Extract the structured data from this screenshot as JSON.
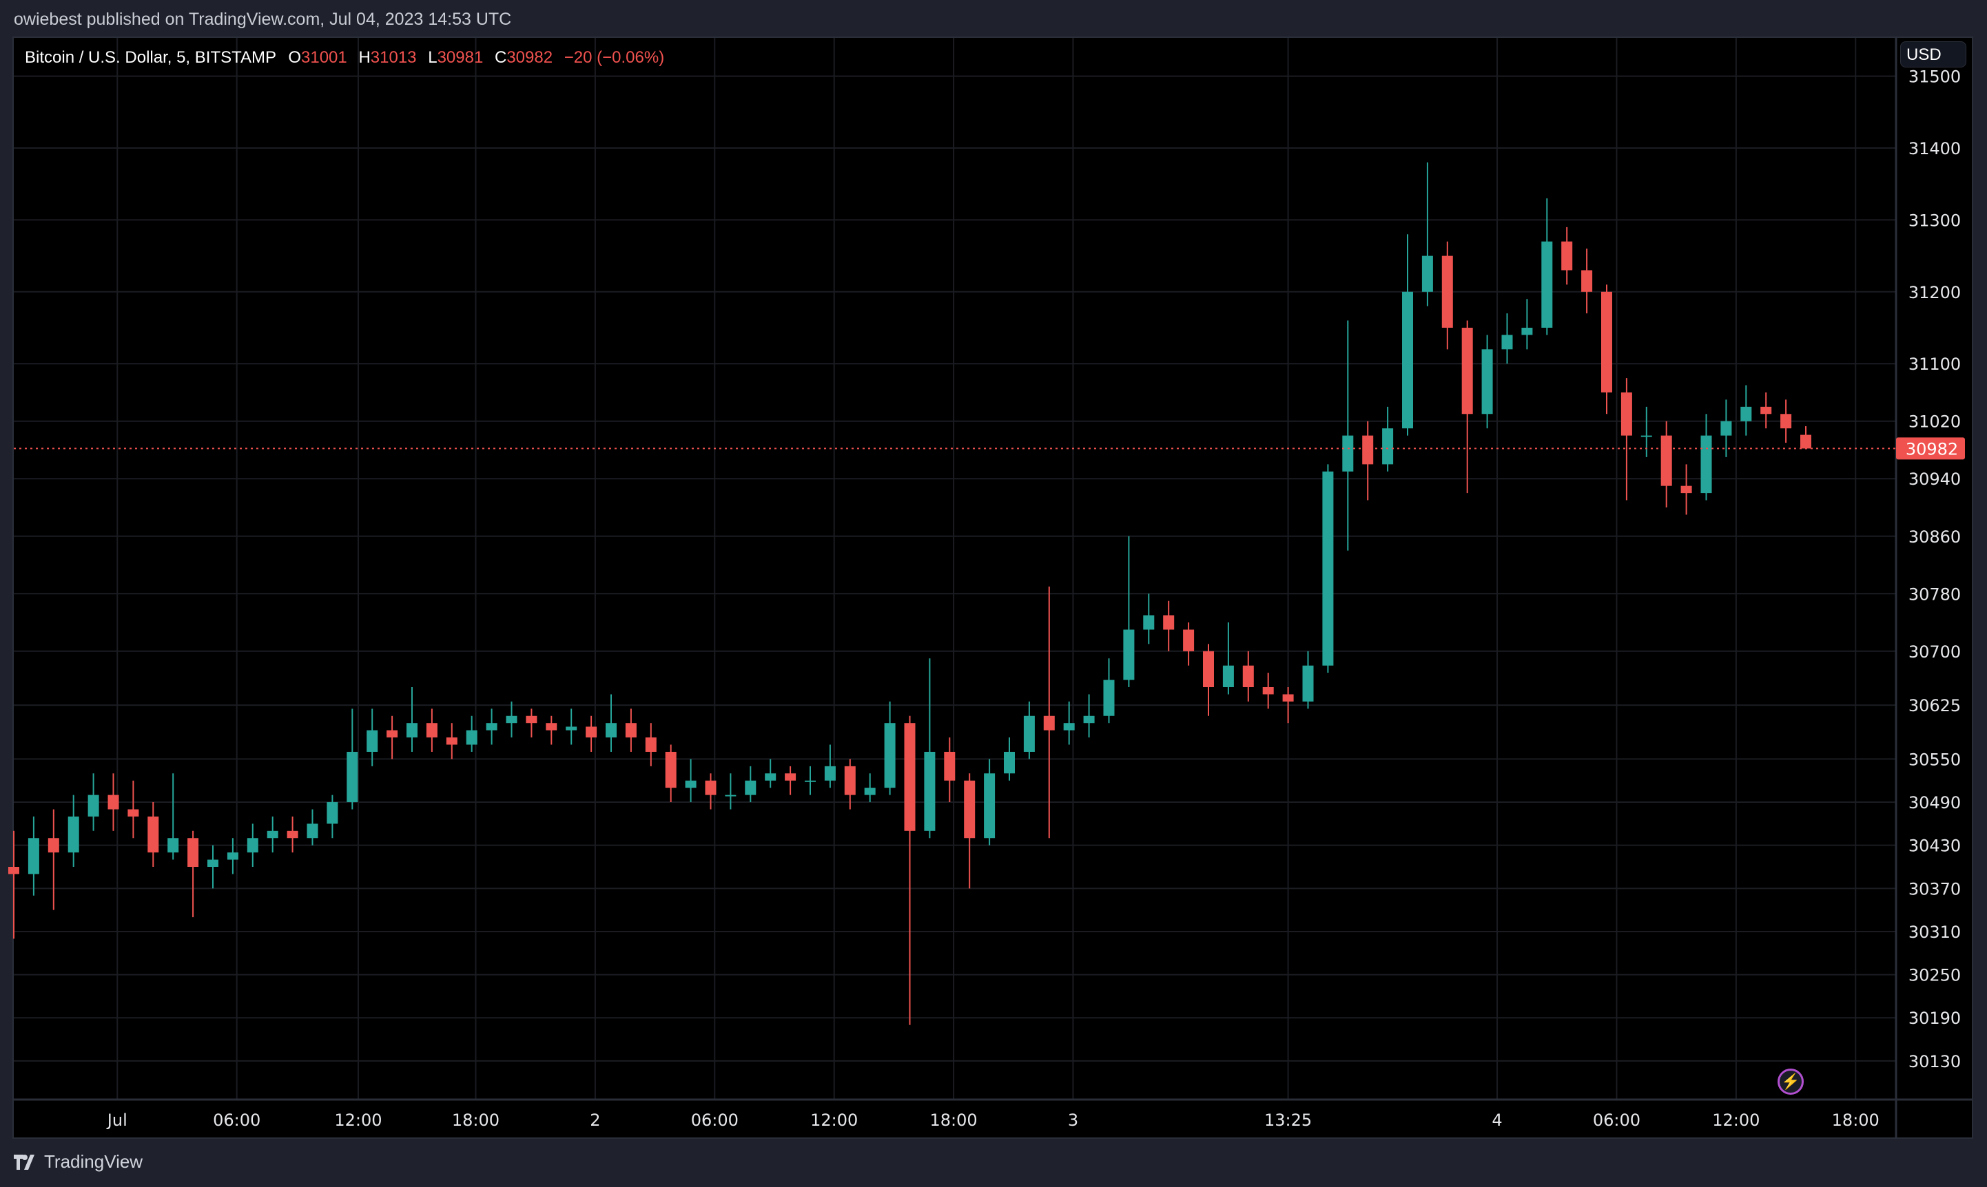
{
  "header": {
    "published": "owiebest published on TradingView.com, Jul 04, 2023 14:53 UTC"
  },
  "legend": {
    "symbol": "Bitcoin / U.S. Dollar, 5, BITSTAMP",
    "o_label": "O",
    "o": "31001",
    "h_label": "H",
    "h": "31013",
    "l_label": "L",
    "l": "30981",
    "c_label": "C",
    "c": "30982",
    "change": "−20 (−0.06%)"
  },
  "currency_button": "USD",
  "footer": {
    "brand": "TradingView"
  },
  "colors": {
    "up": "#26a69a",
    "down": "#ef5350",
    "background": "#000000",
    "grid": "#1a1c22",
    "last_price": "#f0524f"
  },
  "chart_data": {
    "type": "candlestick",
    "title": "Bitcoin / U.S. Dollar, 5, BITSTAMP",
    "ylim": [
      30080,
      31500
    ],
    "y_ticks": [
      31500,
      31400,
      31300,
      31200,
      31100,
      31020,
      30940,
      30860,
      30780,
      30700,
      30625,
      30550,
      30490,
      30430,
      30370,
      30310,
      30250,
      30190,
      30130
    ],
    "x_ticks": [
      {
        "label": "Jul",
        "index": 5.2
      },
      {
        "label": "06:00",
        "index": 11.2
      },
      {
        "label": "12:00",
        "index": 17.3
      },
      {
        "label": "18:00",
        "index": 23.2
      },
      {
        "label": "2",
        "index": 29.2
      },
      {
        "label": "06:00",
        "index": 35.2
      },
      {
        "label": "12:00",
        "index": 41.2
      },
      {
        "label": "18:00",
        "index": 47.2
      },
      {
        "label": "3",
        "index": 53.2
      },
      {
        "label": "13:25",
        "index": 64
      },
      {
        "label": "4",
        "index": 74.5
      },
      {
        "label": "06:00",
        "index": 80.5
      },
      {
        "label": "12:00",
        "index": 86.5
      },
      {
        "label": "18:00",
        "index": 92.5
      }
    ],
    "last_price": 30982,
    "candles_ohlc": [
      [
        30400,
        30450,
        30300,
        30390
      ],
      [
        30390,
        30470,
        30360,
        30440
      ],
      [
        30440,
        30480,
        30340,
        30420
      ],
      [
        30420,
        30500,
        30400,
        30470
      ],
      [
        30470,
        30530,
        30450,
        30500
      ],
      [
        30500,
        30530,
        30450,
        30480
      ],
      [
        30480,
        30520,
        30440,
        30470
      ],
      [
        30470,
        30490,
        30400,
        30420
      ],
      [
        30420,
        30530,
        30410,
        30440
      ],
      [
        30440,
        30450,
        30330,
        30400
      ],
      [
        30400,
        30430,
        30370,
        30410
      ],
      [
        30410,
        30440,
        30390,
        30420
      ],
      [
        30420,
        30460,
        30400,
        30440
      ],
      [
        30440,
        30470,
        30420,
        30450
      ],
      [
        30450,
        30470,
        30420,
        30440
      ],
      [
        30440,
        30480,
        30430,
        30460
      ],
      [
        30460,
        30500,
        30440,
        30490
      ],
      [
        30490,
        30620,
        30480,
        30560
      ],
      [
        30560,
        30620,
        30540,
        30590
      ],
      [
        30590,
        30610,
        30550,
        30580
      ],
      [
        30580,
        30650,
        30560,
        30600
      ],
      [
        30600,
        30620,
        30560,
        30580
      ],
      [
        30580,
        30600,
        30550,
        30570
      ],
      [
        30570,
        30610,
        30560,
        30590
      ],
      [
        30590,
        30620,
        30570,
        30600
      ],
      [
        30600,
        30630,
        30580,
        30610
      ],
      [
        30610,
        30620,
        30580,
        30600
      ],
      [
        30600,
        30610,
        30570,
        30590
      ],
      [
        30590,
        30620,
        30570,
        30595
      ],
      [
        30595,
        30610,
        30560,
        30580
      ],
      [
        30580,
        30640,
        30560,
        30600
      ],
      [
        30600,
        30620,
        30560,
        30580
      ],
      [
        30580,
        30600,
        30540,
        30560
      ],
      [
        30560,
        30570,
        30490,
        30510
      ],
      [
        30510,
        30550,
        30490,
        30520
      ],
      [
        30520,
        30530,
        30480,
        30500
      ],
      [
        30500,
        30530,
        30480,
        30500
      ],
      [
        30500,
        30540,
        30490,
        30520
      ],
      [
        30520,
        30550,
        30510,
        30530
      ],
      [
        30530,
        30540,
        30500,
        30520
      ],
      [
        30520,
        30540,
        30500,
        30520
      ],
      [
        30520,
        30570,
        30510,
        30540
      ],
      [
        30540,
        30550,
        30480,
        30500
      ],
      [
        30500,
        30530,
        30490,
        30510
      ],
      [
        30510,
        30630,
        30500,
        30600
      ],
      [
        30600,
        30610,
        30180,
        30450
      ],
      [
        30450,
        30690,
        30440,
        30560
      ],
      [
        30560,
        30580,
        30490,
        30520
      ],
      [
        30520,
        30530,
        30370,
        30440
      ],
      [
        30440,
        30550,
        30430,
        30530
      ],
      [
        30530,
        30580,
        30520,
        30560
      ],
      [
        30560,
        30630,
        30550,
        30610
      ],
      [
        30610,
        30790,
        30440,
        30590
      ],
      [
        30590,
        30630,
        30570,
        30600
      ],
      [
        30600,
        30640,
        30580,
        30610
      ],
      [
        30610,
        30690,
        30600,
        30660
      ],
      [
        30660,
        30860,
        30650,
        30730
      ],
      [
        30730,
        30780,
        30710,
        30750
      ],
      [
        30750,
        30770,
        30700,
        30730
      ],
      [
        30730,
        30740,
        30680,
        30700
      ],
      [
        30700,
        30710,
        30610,
        30650
      ],
      [
        30650,
        30740,
        30640,
        30680
      ],
      [
        30680,
        30700,
        30630,
        30650
      ],
      [
        30650,
        30670,
        30620,
        30640
      ],
      [
        30640,
        30650,
        30600,
        30630
      ],
      [
        30630,
        30700,
        30620,
        30680
      ],
      [
        30680,
        30960,
        30670,
        30950
      ],
      [
        30950,
        31160,
        30840,
        31000
      ],
      [
        31000,
        31020,
        30910,
        30960
      ],
      [
        30960,
        31040,
        30950,
        31010
      ],
      [
        31010,
        31280,
        31000,
        31200
      ],
      [
        31200,
        31380,
        31180,
        31250
      ],
      [
        31250,
        31270,
        31120,
        31150
      ],
      [
        31150,
        31160,
        30920,
        31030
      ],
      [
        31030,
        31140,
        31010,
        31120
      ],
      [
        31120,
        31170,
        31100,
        31140
      ],
      [
        31140,
        31190,
        31120,
        31150
      ],
      [
        31150,
        31330,
        31140,
        31270
      ],
      [
        31270,
        31290,
        31210,
        31230
      ],
      [
        31230,
        31260,
        31170,
        31200
      ],
      [
        31200,
        31210,
        31030,
        31060
      ],
      [
        31060,
        31080,
        30910,
        31000
      ],
      [
        31000,
        31040,
        30970,
        31000
      ],
      [
        31000,
        31020,
        30900,
        30930
      ],
      [
        30930,
        30960,
        30890,
        30920
      ],
      [
        30920,
        31030,
        30910,
        31000
      ],
      [
        31000,
        31050,
        30970,
        31020
      ],
      [
        31020,
        31070,
        31000,
        31040
      ],
      [
        31040,
        31060,
        31010,
        31030
      ],
      [
        31030,
        31050,
        30990,
        31010
      ],
      [
        31001,
        31013,
        30981,
        30982
      ]
    ]
  }
}
